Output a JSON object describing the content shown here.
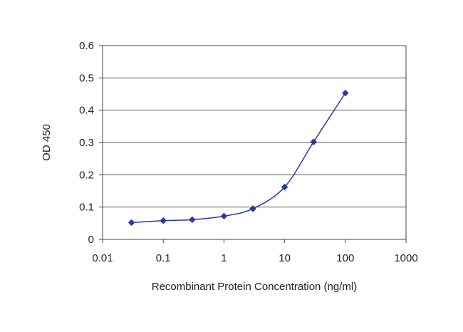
{
  "chart_data": {
    "type": "line",
    "title": "",
    "xlabel": "Recombinant Protein Concentration (ng/ml)",
    "ylabel": "OD 450",
    "xscale": "log",
    "xlim": [
      0.01,
      1000
    ],
    "ylim": [
      0,
      0.6
    ],
    "xticks": [
      0.01,
      0.1,
      1,
      10,
      100,
      1000
    ],
    "xtick_labels": [
      "0.01",
      "0.1",
      "1",
      "10",
      "100",
      "1000"
    ],
    "yticks": [
      0,
      0.1,
      0.2,
      0.3,
      0.4,
      0.5,
      0.6
    ],
    "ytick_labels": [
      "0",
      "0.1",
      "0.2",
      "0.3",
      "0.4",
      "0.5",
      "0.6"
    ],
    "grid": "horizontal",
    "series": [
      {
        "x": [
          0.03,
          0.1,
          0.3,
          1,
          3,
          10,
          30,
          100
        ],
        "y": [
          0.052,
          0.058,
          0.061,
          0.072,
          0.095,
          0.162,
          0.302,
          0.453
        ],
        "color": "#2b3a9a"
      }
    ]
  }
}
